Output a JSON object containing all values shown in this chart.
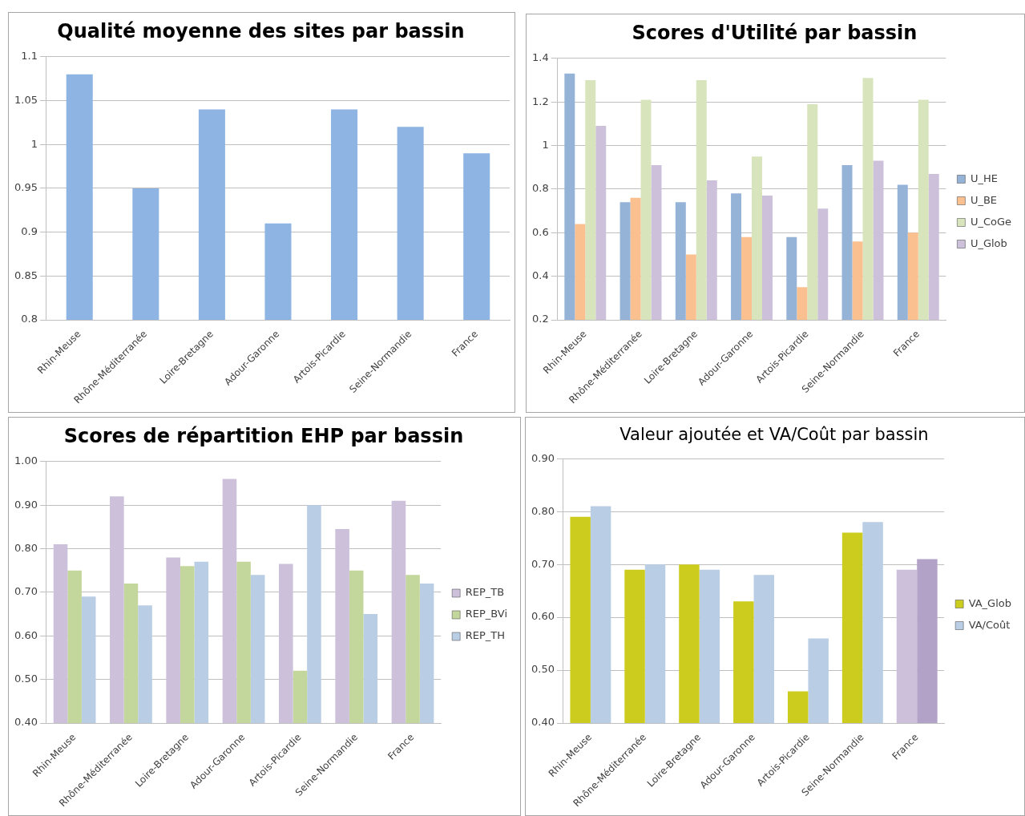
{
  "chart_data": [
    {
      "type": "bar",
      "title": "Qualité moyenne des sites par bassin",
      "categories": [
        "Rhin-Meuse",
        "Rhône-Méditerranée",
        "Loire-Bretagne",
        "Adour-Garonne",
        "Artois-Picardie",
        "Seine-Normandie",
        "France"
      ],
      "values": [
        1.08,
        0.95,
        1.04,
        0.91,
        1.04,
        1.02,
        0.99
      ],
      "color": "#8db4e2",
      "ylim": [
        0.8,
        1.1
      ],
      "yticks": [
        0.8,
        0.85,
        0.9,
        0.95,
        1,
        1.05,
        1.1
      ],
      "grid": "y",
      "legend": false
    },
    {
      "type": "bar",
      "title": "Scores d'Utilité par bassin",
      "categories": [
        "Rhin-Meuse",
        "Rhône-Méditerranée",
        "Loire-Bretagne",
        "Adour-Garonne",
        "Artois-Picardie",
        "Seine-Normandie",
        "France"
      ],
      "series": [
        {
          "name": "U_HE",
          "color": "#95b3d7",
          "values": [
            1.33,
            0.74,
            0.74,
            0.78,
            0.58,
            0.91,
            0.82
          ]
        },
        {
          "name": "U_BE",
          "color": "#fac090",
          "values": [
            0.64,
            0.76,
            0.5,
            0.58,
            0.35,
            0.56,
            0.6
          ]
        },
        {
          "name": "U_CoGe",
          "color": "#d7e4bc",
          "values": [
            1.3,
            1.21,
            1.3,
            0.95,
            1.19,
            1.31,
            1.21
          ]
        },
        {
          "name": "U_Glob",
          "color": "#ccc0da",
          "values": [
            1.09,
            0.91,
            0.84,
            0.77,
            0.71,
            0.93,
            0.87
          ]
        }
      ],
      "ylim": [
        0.2,
        1.4
      ],
      "yticks": [
        0.2,
        0.4,
        0.6,
        0.8,
        1,
        1.2,
        1.4
      ],
      "grid": "y",
      "legend": "right"
    },
    {
      "type": "bar",
      "title": "Scores de répartition EHP par bassin",
      "categories": [
        "Rhin-Meuse",
        "Rhône-Méditerranée",
        "Loire-Bretagne",
        "Adour-Garonne",
        "Artois-Picardie",
        "Seine-Normandie",
        "France"
      ],
      "series": [
        {
          "name": "REP_TB",
          "color": "#ccc0da",
          "values": [
            0.81,
            0.92,
            0.78,
            0.96,
            0.765,
            0.845,
            0.91
          ]
        },
        {
          "name": "REP_BVi",
          "color": "#c3d69b",
          "values": [
            0.75,
            0.72,
            0.76,
            0.77,
            0.52,
            0.75,
            0.74
          ]
        },
        {
          "name": "REP_TH",
          "color": "#b9cde5",
          "values": [
            0.69,
            0.67,
            0.77,
            0.74,
            0.9,
            0.65,
            0.72
          ]
        }
      ],
      "ylim": [
        0.4,
        1.0
      ],
      "yticks": [
        {
          "value": 0.4,
          "label": "0.40"
        },
        {
          "value": 0.5,
          "label": "0.50"
        },
        {
          "value": 0.6,
          "label": "0.60"
        },
        {
          "value": 0.7,
          "label": "0.70"
        },
        {
          "value": 0.8,
          "label": "0.80"
        },
        {
          "value": 0.9,
          "label": "0.90"
        },
        {
          "value": 1.0,
          "label": "1.00"
        }
      ],
      "grid": "y",
      "legend": "right"
    },
    {
      "type": "bar",
      "title": "Valeur ajoutée et VA/Coût par bassin",
      "categories": [
        "Rhin-Meuse",
        "Rhône-Méditerranée",
        "Loire-Bretagne",
        "Adour-Garonne",
        "Artois-Picardie",
        "Seine-Normandie",
        "France"
      ],
      "series": [
        {
          "name": "VA_Glob",
          "color": "#cccc1f",
          "colors": [
            "#cccc1f",
            "#cccc1f",
            "#cccc1f",
            "#cccc1f",
            "#cccc1f",
            "#cccc1f",
            "#ccc0da"
          ],
          "values": [
            0.79,
            0.69,
            0.7,
            0.63,
            0.46,
            0.76,
            0.69
          ]
        },
        {
          "name": "VA/Coût",
          "color": "#b9cde5",
          "colors": [
            "#b9cde5",
            "#b9cde5",
            "#b9cde5",
            "#b9cde5",
            "#b9cde5",
            "#b9cde5",
            "#b3a2c7"
          ],
          "values": [
            0.81,
            0.7,
            0.69,
            0.68,
            0.56,
            0.78,
            0.71
          ]
        }
      ],
      "ylim": [
        0.4,
        0.9
      ],
      "yticks": [
        {
          "value": 0.4,
          "label": "0.40"
        },
        {
          "value": 0.5,
          "label": "0.50"
        },
        {
          "value": 0.6,
          "label": "0.60"
        },
        {
          "value": 0.7,
          "label": "0.70"
        },
        {
          "value": 0.8,
          "label": "0.80"
        },
        {
          "value": 0.9,
          "label": "0.90"
        }
      ],
      "grid": "y",
      "legend": "right"
    }
  ]
}
